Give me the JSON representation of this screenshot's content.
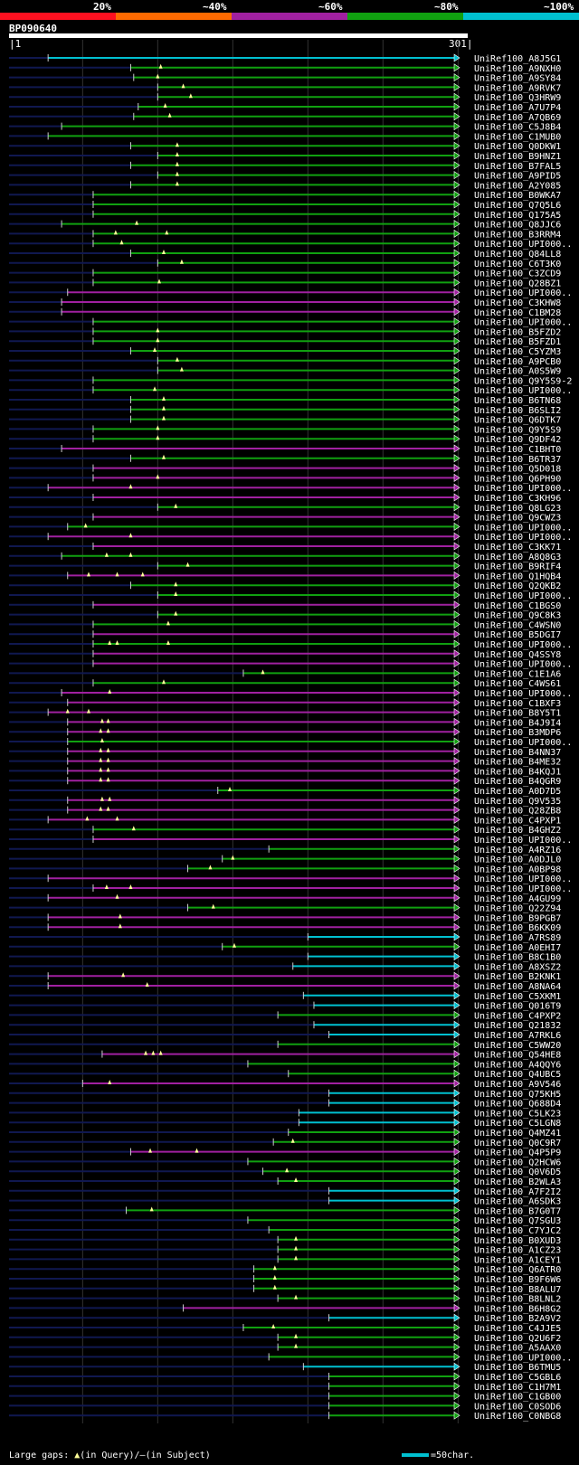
{
  "legend": [
    {
      "label": "20%",
      "color": "#ff1020"
    },
    {
      "label": "~40%",
      "color": "#ff6a00"
    },
    {
      "label": "~60%",
      "color": "#a020a0"
    },
    {
      "label": "~80%",
      "color": "#10a010"
    },
    {
      "label": "~100%",
      "color": "#00c0d0"
    }
  ],
  "query": {
    "name": "BP090640",
    "start": "1",
    "end": "301"
  },
  "footer": {
    "gaps_prefix": "Large gaps:",
    "query_symbol": "▲",
    "query_text": "(in Query)/",
    "subject_symbol": "–",
    "subject_text": "(in Subject)"
  },
  "scale": {
    "label": "=50char."
  },
  "chart_data": {
    "type": "alignment-overview",
    "x_range": [
      1,
      301
    ],
    "hits": [
      {
        "name": "UniRef100_A8J5G1",
        "start": 27,
        "color": "cyan",
        "gaps": []
      },
      {
        "name": "UniRef100_A9NXH0",
        "start": 82,
        "color": "green",
        "gaps": [
          102
        ]
      },
      {
        "name": "UniRef100_A9SY84",
        "start": 84,
        "color": "green",
        "gaps": [
          100
        ]
      },
      {
        "name": "UniRef100_A9RVK7",
        "start": 100,
        "color": "green",
        "gaps": [
          117
        ]
      },
      {
        "name": "UniRef100_Q3HRW9",
        "start": 100,
        "color": "green",
        "gaps": [
          122
        ]
      },
      {
        "name": "UniRef100_A7U7P4",
        "start": 87,
        "color": "green",
        "gaps": [
          105
        ]
      },
      {
        "name": "UniRef100_A7QB69",
        "start": 84,
        "color": "green",
        "gaps": [
          108
        ]
      },
      {
        "name": "UniRef100_C5J8B4",
        "start": 36,
        "color": "green",
        "gaps": []
      },
      {
        "name": "UniRef100_C1MUB0",
        "start": 27,
        "color": "green",
        "gaps": []
      },
      {
        "name": "UniRef100_Q0DKW1",
        "start": 82,
        "color": "green",
        "gaps": [
          113
        ]
      },
      {
        "name": "UniRef100_B9HNZ1",
        "start": 100,
        "color": "green",
        "gaps": [
          113
        ]
      },
      {
        "name": "UniRef100_B7FAL5",
        "start": 82,
        "color": "green",
        "gaps": [
          113
        ]
      },
      {
        "name": "UniRef100_A9PID5",
        "start": 100,
        "color": "green",
        "gaps": [
          113
        ]
      },
      {
        "name": "UniRef100_A2Y085",
        "start": 82,
        "color": "green",
        "gaps": [
          113
        ]
      },
      {
        "name": "UniRef100_B0WKA7",
        "start": 57,
        "color": "green",
        "gaps": []
      },
      {
        "name": "UniRef100_Q7Q5L6",
        "start": 57,
        "color": "green",
        "gaps": []
      },
      {
        "name": "UniRef100_Q175A5",
        "start": 57,
        "color": "green",
        "gaps": []
      },
      {
        "name": "UniRef100_Q8JJC6",
        "start": 36,
        "color": "green",
        "gaps": [
          86
        ]
      },
      {
        "name": "UniRef100_B3RRM4",
        "start": 57,
        "color": "green",
        "gaps": [
          72,
          106
        ]
      },
      {
        "name": "UniRef100_UPI000..",
        "start": 57,
        "color": "green",
        "gaps": [
          76
        ]
      },
      {
        "name": "UniRef100_Q84LL8",
        "start": 82,
        "color": "green",
        "gaps": [
          104
        ]
      },
      {
        "name": "UniRef100_C6T3K0",
        "start": 100,
        "color": "green",
        "gaps": [
          116
        ]
      },
      {
        "name": "UniRef100_C3ZCD9",
        "start": 57,
        "color": "green",
        "gaps": []
      },
      {
        "name": "UniRef100_Q28BZ1",
        "start": 57,
        "color": "green",
        "gaps": [
          101
        ]
      },
      {
        "name": "UniRef100_UPI000..",
        "start": 40,
        "color": "magenta",
        "gaps": []
      },
      {
        "name": "UniRef100_C3KHW8",
        "start": 36,
        "color": "magenta",
        "gaps": []
      },
      {
        "name": "UniRef100_C1BM28",
        "start": 36,
        "color": "magenta",
        "gaps": []
      },
      {
        "name": "UniRef100_UPI000..",
        "start": 57,
        "color": "green",
        "gaps": []
      },
      {
        "name": "UniRef100_B5FZD2",
        "start": 57,
        "color": "green",
        "gaps": [
          100
        ]
      },
      {
        "name": "UniRef100_B5FZD1",
        "start": 57,
        "color": "green",
        "gaps": [
          100
        ]
      },
      {
        "name": "UniRef100_C5YZM3",
        "start": 82,
        "color": "green",
        "gaps": [
          98
        ]
      },
      {
        "name": "UniRef100_A9PCB0",
        "start": 100,
        "color": "green",
        "gaps": [
          113
        ]
      },
      {
        "name": "UniRef100_A0S5W9",
        "start": 100,
        "color": "green",
        "gaps": [
          116
        ]
      },
      {
        "name": "UniRef100_Q9Y5S9-2",
        "start": 57,
        "color": "green",
        "gaps": []
      },
      {
        "name": "UniRef100_UPI000..",
        "start": 57,
        "color": "green",
        "gaps": [
          98
        ]
      },
      {
        "name": "UniRef100_B6TN68",
        "start": 82,
        "color": "green",
        "gaps": [
          104
        ]
      },
      {
        "name": "UniRef100_B6SLI2",
        "start": 82,
        "color": "green",
        "gaps": [
          104
        ]
      },
      {
        "name": "UniRef100_Q6DTK7",
        "start": 82,
        "color": "green",
        "gaps": [
          104
        ]
      },
      {
        "name": "UniRef100_Q9Y5S9",
        "start": 57,
        "color": "green",
        "gaps": [
          100
        ]
      },
      {
        "name": "UniRef100_Q9DF42",
        "start": 57,
        "color": "green",
        "gaps": [
          100
        ]
      },
      {
        "name": "UniRef100_C1BHT0",
        "start": 36,
        "color": "magenta",
        "gaps": []
      },
      {
        "name": "UniRef100_B6TR37",
        "start": 82,
        "color": "green",
        "gaps": [
          104
        ]
      },
      {
        "name": "UniRef100_Q5D018",
        "start": 57,
        "color": "magenta",
        "gaps": []
      },
      {
        "name": "UniRef100_Q6PH90",
        "start": 57,
        "color": "magenta",
        "gaps": [
          100
        ]
      },
      {
        "name": "UniRef100_UPI000..",
        "start": 27,
        "color": "magenta",
        "gaps": [
          82
        ]
      },
      {
        "name": "UniRef100_C3KH96",
        "start": 57,
        "color": "magenta",
        "gaps": []
      },
      {
        "name": "UniRef100_Q8LG23",
        "start": 100,
        "color": "green",
        "gaps": [
          112
        ]
      },
      {
        "name": "UniRef100_Q9CWZ3",
        "start": 57,
        "color": "magenta",
        "gaps": []
      },
      {
        "name": "UniRef100_UPI000..",
        "start": 40,
        "color": "green",
        "gaps": [
          52
        ]
      },
      {
        "name": "UniRef100_UPI000..",
        "start": 27,
        "color": "magenta",
        "gaps": [
          82
        ]
      },
      {
        "name": "UniRef100_C3KK71",
        "start": 57,
        "color": "magenta",
        "gaps": []
      },
      {
        "name": "UniRef100_A8Q8G3",
        "start": 36,
        "color": "green",
        "gaps": [
          66,
          82
        ]
      },
      {
        "name": "UniRef100_B9RIF4",
        "start": 100,
        "color": "green",
        "gaps": [
          120
        ]
      },
      {
        "name": "UniRef100_Q1HQB4",
        "start": 40,
        "color": "magenta",
        "gaps": [
          54,
          73,
          90
        ]
      },
      {
        "name": "UniRef100_Q2QKB2",
        "start": 82,
        "color": "green",
        "gaps": [
          112
        ]
      },
      {
        "name": "UniRef100_UPI000..",
        "start": 100,
        "color": "green",
        "gaps": [
          112
        ]
      },
      {
        "name": "UniRef100_C1BGS0",
        "start": 57,
        "color": "magenta",
        "gaps": []
      },
      {
        "name": "UniRef100_Q9C8K3",
        "start": 100,
        "color": "green",
        "gaps": [
          112
        ]
      },
      {
        "name": "UniRef100_C4WSN0",
        "start": 57,
        "color": "green",
        "gaps": [
          107
        ]
      },
      {
        "name": "UniRef100_B5DGI7",
        "start": 57,
        "color": "magenta",
        "gaps": []
      },
      {
        "name": "UniRef100_UPI000..",
        "start": 57,
        "color": "green",
        "gaps": [
          68,
          73,
          107
        ]
      },
      {
        "name": "UniRef100_Q4SSY8",
        "start": 57,
        "color": "magenta",
        "gaps": []
      },
      {
        "name": "UniRef100_UPI000..",
        "start": 57,
        "color": "magenta",
        "gaps": []
      },
      {
        "name": "UniRef100_C1E1A6",
        "start": 157,
        "color": "green",
        "gaps": [
          170
        ]
      },
      {
        "name": "UniRef100_C4WS61",
        "start": 57,
        "color": "green",
        "gaps": [
          104
        ]
      },
      {
        "name": "UniRef100_UPI000..",
        "start": 36,
        "color": "magenta",
        "gaps": [
          68
        ]
      },
      {
        "name": "UniRef100_C1BXF3",
        "start": 40,
        "color": "magenta",
        "gaps": []
      },
      {
        "name": "UniRef100_B8Y5T1",
        "start": 27,
        "color": "magenta",
        "gaps": [
          40,
          54
        ]
      },
      {
        "name": "UniRef100_B4J9I4",
        "start": 40,
        "color": "magenta",
        "gaps": [
          63,
          67
        ]
      },
      {
        "name": "UniRef100_B3MDP6",
        "start": 40,
        "color": "magenta",
        "gaps": [
          62,
          67
        ]
      },
      {
        "name": "UniRef100_UPI000..",
        "start": 40,
        "color": "green",
        "gaps": [
          63
        ]
      },
      {
        "name": "UniRef100_B4NN37",
        "start": 40,
        "color": "magenta",
        "gaps": [
          62,
          67
        ]
      },
      {
        "name": "UniRef100_B4ME32",
        "start": 40,
        "color": "magenta",
        "gaps": [
          62,
          67
        ]
      },
      {
        "name": "UniRef100_B4KQJ1",
        "start": 40,
        "color": "magenta",
        "gaps": [
          62,
          67
        ]
      },
      {
        "name": "UniRef100_B4QGR9",
        "start": 40,
        "color": "magenta",
        "gaps": [
          62,
          67
        ]
      },
      {
        "name": "UniRef100_A0D7D5",
        "start": 140,
        "color": "green",
        "gaps": [
          148
        ]
      },
      {
        "name": "UniRef100_Q9V535",
        "start": 40,
        "color": "magenta",
        "gaps": [
          63,
          68
        ]
      },
      {
        "name": "UniRef100_Q28ZB8",
        "start": 40,
        "color": "magenta",
        "gaps": [
          62,
          67
        ]
      },
      {
        "name": "UniRef100_C4PXP1",
        "start": 27,
        "color": "magenta",
        "gaps": [
          53,
          73
        ]
      },
      {
        "name": "UniRef100_B4GHZ2",
        "start": 57,
        "color": "green",
        "gaps": [
          84
        ]
      },
      {
        "name": "UniRef100_UPI000..",
        "start": 57,
        "color": "magenta",
        "gaps": []
      },
      {
        "name": "UniRef100_A4RZ16",
        "start": 174,
        "color": "green",
        "gaps": []
      },
      {
        "name": "UniRef100_A0DJL0",
        "start": 143,
        "color": "green",
        "gaps": [
          150
        ]
      },
      {
        "name": "UniRef100_A0BP98",
        "start": 120,
        "color": "green",
        "gaps": [
          135
        ]
      },
      {
        "name": "UniRef100_UPI000..",
        "start": 27,
        "color": "magenta",
        "gaps": []
      },
      {
        "name": "UniRef100_UPI000..",
        "start": 57,
        "color": "magenta",
        "gaps": [
          66,
          82
        ]
      },
      {
        "name": "UniRef100_A4GU99",
        "start": 27,
        "color": "magenta",
        "gaps": [
          73
        ]
      },
      {
        "name": "UniRef100_Q22Z94",
        "start": 120,
        "color": "green",
        "gaps": [
          137
        ]
      },
      {
        "name": "UniRef100_B9PGB7",
        "start": 27,
        "color": "magenta",
        "gaps": [
          75
        ]
      },
      {
        "name": "UniRef100_B6KK09",
        "start": 27,
        "color": "magenta",
        "gaps": [
          75
        ]
      },
      {
        "name": "UniRef100_A7RS89",
        "start": 200,
        "color": "cyan",
        "gaps": []
      },
      {
        "name": "UniRef100_A0EHI7",
        "start": 143,
        "color": "green",
        "gaps": [
          151
        ]
      },
      {
        "name": "UniRef100_B8C1B0",
        "start": 200,
        "color": "cyan",
        "gaps": []
      },
      {
        "name": "UniRef100_A8XSZ2",
        "start": 190,
        "color": "cyan",
        "gaps": []
      },
      {
        "name": "UniRef100_B2KNK1",
        "start": 27,
        "color": "magenta",
        "gaps": [
          77
        ]
      },
      {
        "name": "UniRef100_A8NA64",
        "start": 27,
        "color": "magenta",
        "gaps": [
          93
        ]
      },
      {
        "name": "UniRef100_C5XKM1",
        "start": 197,
        "color": "cyan",
        "gaps": []
      },
      {
        "name": "UniRef100_Q016T9",
        "start": 204,
        "color": "cyan",
        "gaps": []
      },
      {
        "name": "UniRef100_C4PXP2",
        "start": 180,
        "color": "green",
        "gaps": []
      },
      {
        "name": "UniRef100_Q21832",
        "start": 204,
        "color": "cyan",
        "gaps": []
      },
      {
        "name": "UniRef100_A7RKL6",
        "start": 214,
        "color": "cyan",
        "gaps": []
      },
      {
        "name": "UniRef100_C5WW20",
        "start": 180,
        "color": "green",
        "gaps": []
      },
      {
        "name": "UniRef100_Q54HE8",
        "start": 63,
        "color": "magenta",
        "gaps": [
          92,
          97,
          102
        ]
      },
      {
        "name": "UniRef100_A4QQY6",
        "start": 160,
        "color": "green",
        "gaps": []
      },
      {
        "name": "UniRef100_Q4UBC5",
        "start": 187,
        "color": "green",
        "gaps": []
      },
      {
        "name": "UniRef100_A9V546",
        "start": 50,
        "color": "magenta",
        "gaps": [
          68
        ]
      },
      {
        "name": "UniRef100_Q75KH5",
        "start": 214,
        "color": "cyan",
        "gaps": []
      },
      {
        "name": "UniRef100_Q688D4",
        "start": 214,
        "color": "cyan",
        "gaps": []
      },
      {
        "name": "UniRef100_C5LK23",
        "start": 194,
        "color": "cyan",
        "gaps": []
      },
      {
        "name": "UniRef100_C5LGN8",
        "start": 194,
        "color": "cyan",
        "gaps": []
      },
      {
        "name": "UniRef100_Q4MZ41",
        "start": 187,
        "color": "green",
        "gaps": []
      },
      {
        "name": "UniRef100_Q0C9R7",
        "start": 177,
        "color": "green",
        "gaps": [
          190
        ]
      },
      {
        "name": "UniRef100_Q4P5P9",
        "start": 82,
        "color": "magenta",
        "gaps": [
          95,
          126
        ]
      },
      {
        "name": "UniRef100_Q2HCW6",
        "start": 160,
        "color": "green",
        "gaps": []
      },
      {
        "name": "UniRef100_Q0V6D5",
        "start": 170,
        "color": "green",
        "gaps": [
          186
        ]
      },
      {
        "name": "UniRef100_B2WLA3",
        "start": 180,
        "color": "green",
        "gaps": [
          192
        ]
      },
      {
        "name": "UniRef100_A7F2I2",
        "start": 214,
        "color": "cyan",
        "gaps": []
      },
      {
        "name": "UniRef100_A6SDK3",
        "start": 214,
        "color": "cyan",
        "gaps": []
      },
      {
        "name": "UniRef100_B7G0T7",
        "start": 79,
        "color": "green",
        "gaps": [
          96
        ]
      },
      {
        "name": "UniRef100_Q7SGU3",
        "start": 160,
        "color": "green",
        "gaps": []
      },
      {
        "name": "UniRef100_C7YJC2",
        "start": 174,
        "color": "green",
        "gaps": []
      },
      {
        "name": "UniRef100_B0XUD3",
        "start": 180,
        "color": "green",
        "gaps": [
          192
        ]
      },
      {
        "name": "UniRef100_A1CZ23",
        "start": 180,
        "color": "green",
        "gaps": [
          192
        ]
      },
      {
        "name": "UniRef100_A1CEY1",
        "start": 180,
        "color": "green",
        "gaps": [
          192
        ]
      },
      {
        "name": "UniRef100_Q6ATR0",
        "start": 164,
        "color": "green",
        "gaps": [
          178
        ]
      },
      {
        "name": "UniRef100_B9F6W6",
        "start": 164,
        "color": "green",
        "gaps": [
          178
        ]
      },
      {
        "name": "UniRef100_B8ALU7",
        "start": 164,
        "color": "green",
        "gaps": [
          178
        ]
      },
      {
        "name": "UniRef100_B8LNL2",
        "start": 180,
        "color": "green",
        "gaps": [
          192
        ]
      },
      {
        "name": "UniRef100_B6H8G2",
        "start": 117,
        "color": "magenta",
        "gaps": []
      },
      {
        "name": "UniRef100_B2A9V2",
        "start": 214,
        "color": "cyan",
        "gaps": []
      },
      {
        "name": "UniRef100_C4JJE5",
        "start": 157,
        "color": "green",
        "gaps": [
          177
        ]
      },
      {
        "name": "UniRef100_Q2U6F2",
        "start": 180,
        "color": "green",
        "gaps": [
          192
        ]
      },
      {
        "name": "UniRef100_A5AAX0",
        "start": 180,
        "color": "green",
        "gaps": [
          192
        ]
      },
      {
        "name": "UniRef100_UPI000..",
        "start": 174,
        "color": "green",
        "gaps": []
      },
      {
        "name": "UniRef100_B6TMU5",
        "start": 197,
        "color": "cyan",
        "gaps": []
      },
      {
        "name": "UniRef100_C5GBL6",
        "start": 214,
        "color": "green",
        "gaps": []
      },
      {
        "name": "UniRef100_C1H7M1",
        "start": 214,
        "color": "green",
        "gaps": []
      },
      {
        "name": "UniRef100_C1GB00",
        "start": 214,
        "color": "green",
        "gaps": []
      },
      {
        "name": "UniRef100_C0SOD6",
        "start": 214,
        "color": "green",
        "gaps": []
      },
      {
        "name": "UniRef100_C0NBG8",
        "start": 214,
        "color": "green",
        "gaps": []
      }
    ]
  }
}
